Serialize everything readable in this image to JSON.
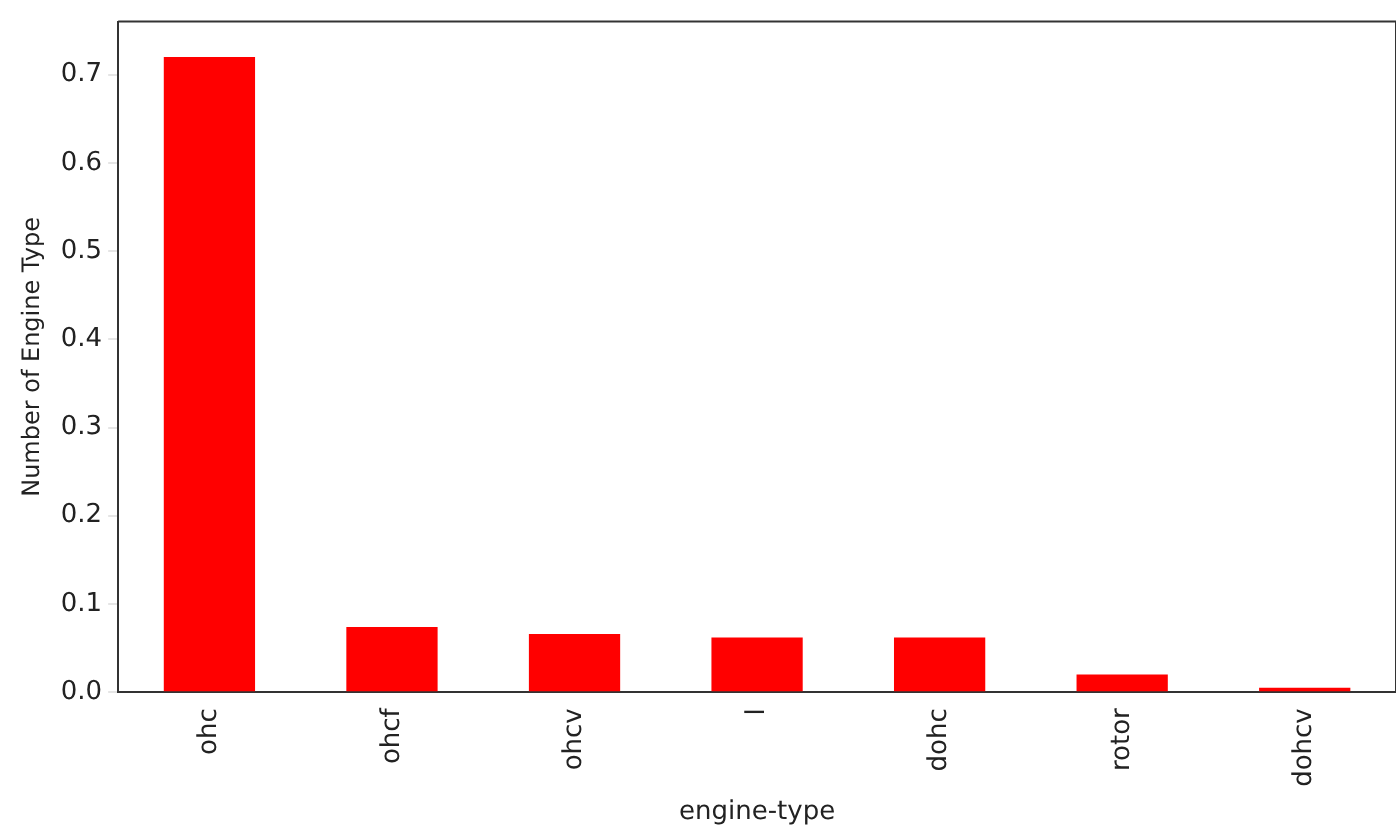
{
  "chart_data": {
    "type": "bar",
    "xlabel": "engine-type",
    "ylabel": "Number of Engine Type",
    "categories": [
      "ohc",
      "ohcf",
      "ohcv",
      "l",
      "dohc",
      "rotor",
      "dohcv"
    ],
    "values": [
      0.72,
      0.074,
      0.066,
      0.062,
      0.062,
      0.02,
      0.005
    ],
    "color": "#ff0000",
    "ylim": [
      0,
      0.76
    ],
    "yticks": [
      {
        "value": 0,
        "label": "0.0"
      },
      0.1,
      0.2,
      0.3,
      0.4,
      0.5,
      0.6,
      0.7
    ],
    "grid": false,
    "legend": false
  }
}
